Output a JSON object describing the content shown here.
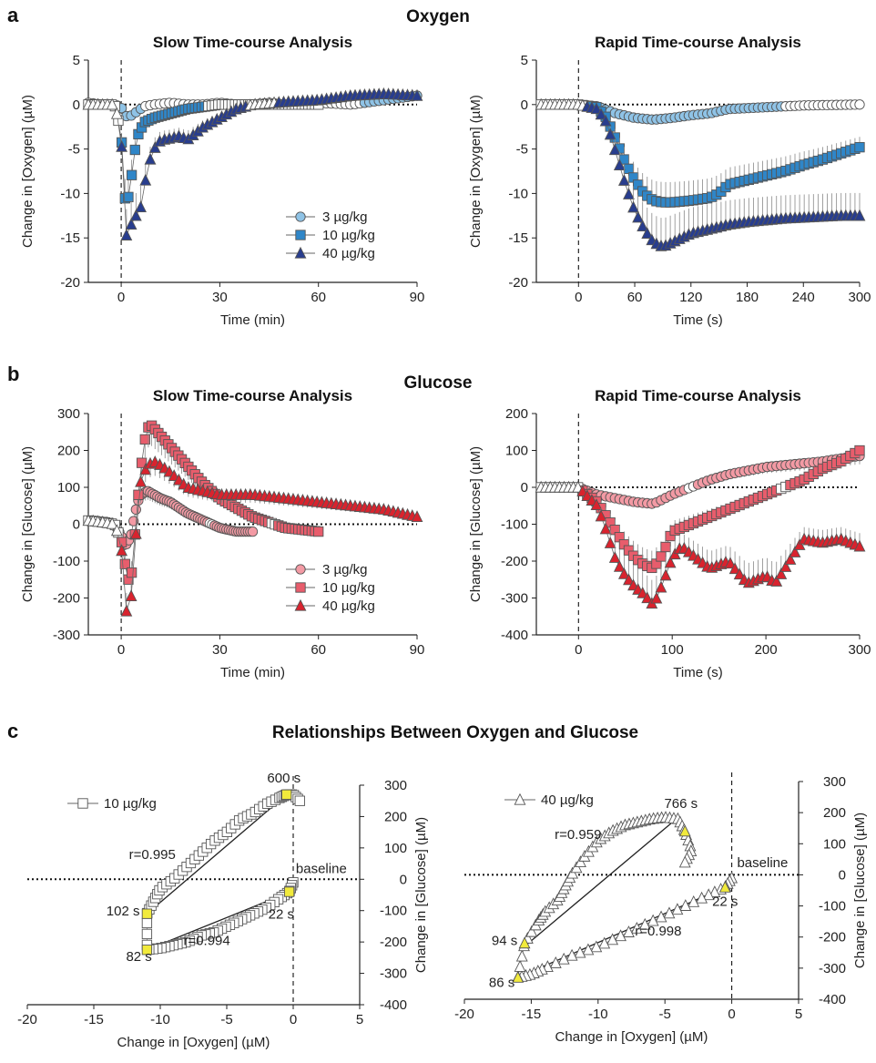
{
  "panel_labels": [
    "a",
    "b",
    "c"
  ],
  "section_titles": [
    "Oxygen",
    "Glucose",
    "Relationships Between Oxygen and Glucose"
  ],
  "colors": {
    "c3": "#8fc3e6",
    "c10": "#2f86c8",
    "c40": "#283d8e",
    "g3": "#f39aa4",
    "g10": "#e85d6c",
    "g40": "#d9232e",
    "highlight": "#f1ea3c"
  },
  "chart_data": [
    {
      "type": "line",
      "title": "Slow Time-course Analysis",
      "xlabel": "Time (min)",
      "ylabel": "Change in [Oxygen]  (µM)",
      "xlim": [
        -10,
        90
      ],
      "ylim": [
        -20,
        5
      ],
      "xticks": [
        0,
        30,
        60,
        90
      ],
      "yticks": [
        -20,
        -15,
        -10,
        -5,
        0,
        5
      ],
      "legend": "center-right",
      "series": [
        {
          "name": "3 µg/kg",
          "marker": "circle",
          "color": "#8fc3e6",
          "x": [
            -10,
            -6,
            -2,
            0,
            1,
            2,
            4,
            7,
            10,
            15,
            20,
            25,
            30,
            35,
            40,
            45,
            50,
            55,
            60,
            70,
            80,
            90
          ],
          "y": [
            0.2,
            0,
            0,
            -0.3,
            -1,
            -1.5,
            -1,
            -0.2,
            0,
            0.2,
            0,
            0,
            0.2,
            0,
            0,
            0.2,
            0,
            0,
            0.2,
            0,
            0.5,
            1
          ]
        },
        {
          "name": "10 µg/kg",
          "marker": "square",
          "color": "#2f86c8",
          "x": [
            -10,
            -6,
            -2,
            0,
            1,
            2,
            3,
            4,
            5,
            7,
            10,
            15,
            20,
            30,
            40,
            50,
            60
          ],
          "y": [
            0,
            0,
            0,
            -3.2,
            -10.5,
            -10.8,
            -8.5,
            -5.5,
            -3.5,
            -2,
            -1.5,
            -1,
            -0.5,
            0,
            0,
            0,
            0
          ]
        },
        {
          "name": "40 µg/kg",
          "marker": "triangle",
          "color": "#283d8e",
          "x": [
            -10,
            -6,
            -2,
            0,
            1,
            2,
            3,
            4,
            5,
            6,
            7,
            8,
            10,
            12,
            15,
            18,
            20,
            25,
            30,
            35,
            40,
            50,
            60,
            70,
            80,
            90
          ],
          "y": [
            0,
            0,
            0,
            -3,
            -15,
            -14.5,
            -13.5,
            -13,
            -12,
            -11.5,
            -9.5,
            -7,
            -5,
            -4,
            -3.8,
            -3.5,
            -4,
            -2.5,
            -1.5,
            -0.5,
            0,
            0.3,
            0.5,
            1,
            1.2,
            1
          ]
        }
      ]
    },
    {
      "type": "line",
      "title": "Rapid Time-course Analysis",
      "xlabel": "Time (s)",
      "ylabel": "Change in [Oxygen]  (µM)",
      "xlim": [
        -45,
        300
      ],
      "ylim": [
        -20,
        5
      ],
      "xticks": [
        0,
        60,
        120,
        180,
        240,
        300
      ],
      "yticks": [
        -20,
        -15,
        -10,
        -5,
        0,
        5
      ],
      "series": [
        {
          "name": "3 µg/kg",
          "marker": "circle",
          "color": "#8fc3e6",
          "x": [
            -40,
            0,
            20,
            40,
            60,
            80,
            100,
            120,
            140,
            160,
            200,
            240,
            300
          ],
          "y": [
            0,
            0,
            -0.2,
            -1,
            -1.5,
            -1.7,
            -1.5,
            -1.2,
            -1,
            -0.5,
            -0.3,
            -0.1,
            0
          ]
        },
        {
          "name": "10 µg/kg",
          "marker": "square",
          "color": "#2f86c8",
          "x": [
            -40,
            0,
            20,
            30,
            40,
            50,
            60,
            70,
            80,
            90,
            100,
            120,
            140,
            150,
            160,
            180,
            200,
            220,
            240,
            260,
            280,
            300
          ],
          "y": [
            0,
            0,
            -0.3,
            -1.5,
            -4,
            -6.5,
            -8.5,
            -10,
            -10.8,
            -11,
            -11,
            -10.8,
            -10.5,
            -10,
            -9,
            -8.5,
            -8,
            -7.5,
            -6.8,
            -6.2,
            -5.5,
            -4.8
          ]
        },
        {
          "name": "40 µg/kg",
          "marker": "triangle",
          "color": "#283d8e",
          "x": [
            -40,
            0,
            20,
            30,
            40,
            50,
            60,
            70,
            80,
            90,
            100,
            120,
            140,
            160,
            180,
            200,
            220,
            240,
            260,
            280,
            300
          ],
          "y": [
            0,
            0,
            -0.5,
            -2,
            -5.5,
            -9,
            -12,
            -14,
            -15.5,
            -16,
            -15.5,
            -14.5,
            -14,
            -13.5,
            -13.2,
            -13,
            -12.8,
            -12.7,
            -12.6,
            -12.5,
            -12.5
          ]
        }
      ]
    },
    {
      "type": "line",
      "title": "Slow Time-course Analysis",
      "xlabel": "Time (min)",
      "ylabel": "Change in [Glucose] (µM)",
      "xlim": [
        -10,
        90
      ],
      "ylim": [
        -300,
        300
      ],
      "xticks": [
        0,
        30,
        60,
        90
      ],
      "yticks": [
        -300,
        -200,
        -100,
        0,
        100,
        200,
        300
      ],
      "legend": "center-right",
      "series": [
        {
          "name": "3 µg/kg",
          "marker": "circle",
          "color": "#f39aa4",
          "x": [
            -10,
            -5,
            -2,
            0,
            1,
            2,
            3,
            4,
            5,
            6,
            8,
            10,
            12,
            15,
            20,
            25,
            30,
            35,
            40
          ],
          "y": [
            10,
            5,
            0,
            -30,
            -60,
            -50,
            -30,
            20,
            60,
            80,
            90,
            80,
            70,
            60,
            30,
            10,
            -10,
            -20,
            -20
          ]
        },
        {
          "name": "10 µg/kg",
          "marker": "square",
          "color": "#e85d6c",
          "x": [
            -10,
            -5,
            -2,
            0,
            1,
            2,
            3,
            4,
            5,
            6,
            7,
            8,
            9,
            10,
            12,
            15,
            20,
            25,
            30,
            40,
            50,
            60
          ],
          "y": [
            10,
            5,
            0,
            -40,
            -100,
            -150,
            -150,
            -50,
            60,
            150,
            220,
            260,
            270,
            260,
            240,
            210,
            160,
            110,
            70,
            20,
            -10,
            -20
          ]
        },
        {
          "name": "40 µg/kg",
          "marker": "triangle",
          "color": "#d9232e",
          "x": [
            -10,
            -5,
            -2,
            0,
            1,
            2,
            3,
            4,
            5,
            6,
            8,
            10,
            12,
            15,
            20,
            25,
            30,
            40,
            50,
            60,
            70,
            80,
            90
          ],
          "y": [
            10,
            5,
            0,
            -50,
            -200,
            -260,
            -200,
            -80,
            30,
            120,
            160,
            170,
            160,
            140,
            100,
            90,
            80,
            80,
            70,
            60,
            50,
            40,
            20
          ]
        }
      ]
    },
    {
      "type": "line",
      "title": "Rapid Time-course Analysis",
      "xlabel": "Time (s)",
      "ylabel": "Change in [Glucose] (µM)",
      "xlim": [
        -45,
        300
      ],
      "ylim": [
        -400,
        200
      ],
      "xticks": [
        0,
        100,
        200,
        300
      ],
      "yticks": [
        -400,
        -300,
        -200,
        -100,
        0,
        100,
        200
      ],
      "series": [
        {
          "name": "3 µg/kg",
          "marker": "circle",
          "color": "#f39aa4",
          "x": [
            -40,
            0,
            20,
            40,
            60,
            80,
            100,
            120,
            140,
            160,
            180,
            200,
            220,
            240,
            260,
            280,
            300
          ],
          "y": [
            0,
            0,
            -20,
            -30,
            -40,
            -45,
            -20,
            0,
            20,
            35,
            45,
            55,
            60,
            65,
            70,
            78,
            85
          ]
        },
        {
          "name": "10 µg/kg",
          "marker": "square",
          "color": "#e85d6c",
          "x": [
            -40,
            0,
            20,
            30,
            40,
            50,
            60,
            70,
            80,
            90,
            100,
            120,
            140,
            160,
            180,
            200,
            220,
            240,
            260,
            280,
            300
          ],
          "y": [
            0,
            0,
            -40,
            -80,
            -120,
            -160,
            -190,
            -210,
            -220,
            -180,
            -120,
            -100,
            -80,
            -60,
            -40,
            -20,
            0,
            20,
            50,
            70,
            100
          ]
        },
        {
          "name": "40 µg/kg",
          "marker": "triangle",
          "color": "#d9232e",
          "x": [
            -40,
            0,
            20,
            30,
            40,
            50,
            60,
            70,
            80,
            90,
            100,
            110,
            120,
            140,
            160,
            180,
            200,
            210,
            220,
            240,
            260,
            280,
            300
          ],
          "y": [
            0,
            0,
            -50,
            -120,
            -200,
            -240,
            -270,
            -290,
            -320,
            -260,
            -190,
            -160,
            -180,
            -220,
            -200,
            -260,
            -240,
            -260,
            -220,
            -140,
            -150,
            -140,
            -160
          ]
        }
      ]
    },
    {
      "type": "scatter",
      "title": "",
      "xlabel": "Change in [Oxygen]  (µM)",
      "ylabel": "Change in [Glucose]  (µM)",
      "xlim": [
        -20,
        5
      ],
      "ylim": [
        -400,
        300
      ],
      "xticks": [
        -20,
        -15,
        -10,
        -5,
        0,
        5
      ],
      "yticks": [
        -400,
        -300,
        -200,
        -100,
        0,
        100,
        200,
        300
      ],
      "legend": "top-left",
      "series": [
        {
          "name": "10 µg/kg",
          "marker": "square",
          "x": [
            0,
            -0.3,
            -1,
            -2,
            -3,
            -4,
            -5,
            -6,
            -7,
            -8,
            -9,
            -10,
            -11,
            -11,
            -10.5,
            -10,
            -9,
            -8,
            -7,
            -6,
            -5,
            -4,
            -3,
            -2,
            -1,
            -0.5,
            0,
            0.5
          ],
          "y": [
            -10,
            -40,
            -60,
            -90,
            -110,
            -130,
            -150,
            -170,
            -180,
            -200,
            -210,
            -220,
            -225,
            -110,
            -70,
            -30,
            0,
            40,
            80,
            120,
            150,
            190,
            210,
            240,
            260,
            270,
            270,
            250
          ]
        }
      ],
      "fit_lines": [
        {
          "label": "r=0.995",
          "x": [
            -11,
            -0.5
          ],
          "y": [
            -110,
            270
          ]
        },
        {
          "label": "r=0.994",
          "x": [
            -11,
            -0.5
          ],
          "y": [
            -225,
            -45
          ]
        }
      ],
      "annotations": [
        "600 s",
        "baseline",
        "102 s",
        "22 s",
        "82 s",
        "r=0.995",
        "r=0.994"
      ]
    },
    {
      "type": "scatter",
      "title": "",
      "xlabel": "Change in [Oxygen]  (µM)",
      "ylabel": "Change in [Glucose]  (µM)",
      "xlim": [
        -20,
        5
      ],
      "ylim": [
        -400,
        300
      ],
      "xticks": [
        -20,
        -15,
        -10,
        -5,
        0,
        5
      ],
      "yticks": [
        -400,
        -300,
        -200,
        -100,
        0,
        100,
        200,
        300
      ],
      "legend": "top-left",
      "series": [
        {
          "name": "40 µg/kg",
          "marker": "triangle",
          "x": [
            0,
            -0.5,
            -2,
            -4,
            -6,
            -8,
            -10,
            -12,
            -14,
            -15,
            -16,
            -15.5,
            -14.5,
            -14,
            -13,
            -12.5,
            -12,
            -11,
            -10,
            -9,
            -8,
            -7,
            -6,
            -5,
            -4,
            -3.5,
            -3,
            -3.5
          ],
          "y": [
            -10,
            -40,
            -70,
            -110,
            -150,
            -190,
            -230,
            -260,
            -300,
            -320,
            -330,
            -220,
            -150,
            -120,
            -80,
            -40,
            0,
            60,
            110,
            140,
            160,
            170,
            180,
            185,
            180,
            140,
            80,
            40
          ]
        }
      ],
      "fit_lines": [
        {
          "label": "r=0.959",
          "x": [
            -15.5,
            -4
          ],
          "y": [
            -230,
            185
          ]
        },
        {
          "label": "r=0.998",
          "x": [
            -16,
            -0.5
          ],
          "y": [
            -330,
            -40
          ]
        }
      ],
      "annotations": [
        "766 s",
        "baseline",
        "94 s",
        "22 s",
        "86 s",
        "r=0.959",
        "r=0.998"
      ]
    }
  ]
}
